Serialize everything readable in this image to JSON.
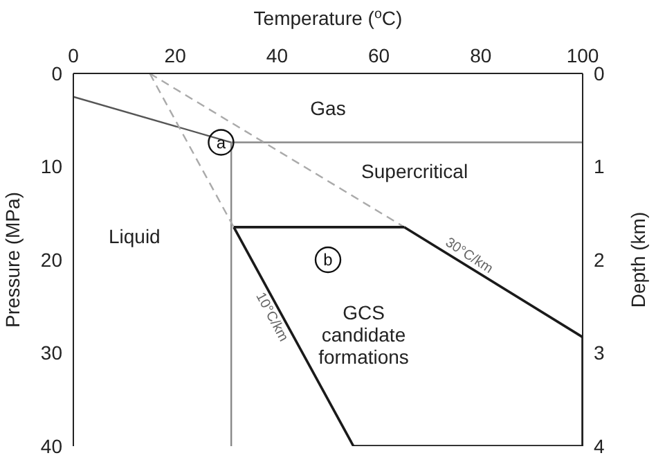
{
  "chart_data": {
    "type": "line",
    "xlabel": "Temperature ($^{o}$C)",
    "ylabel": "Pressure (MPa)",
    "y2label": "Depth (km)",
    "xlim": [
      0,
      100
    ],
    "xticks": [
      0,
      20,
      40,
      60,
      80,
      100
    ],
    "ylim": [
      40,
      0
    ],
    "yticks": [
      0,
      10,
      20,
      30,
      40
    ],
    "y2lim": [
      4,
      0
    ],
    "y2ticks": [
      0,
      1,
      2,
      3,
      4
    ],
    "grid": false,
    "legend": false,
    "marker": "none",
    "series": [
      {
        "color": "#555555",
        "x": [
          0,
          31
        ],
        "values": [
          2.5,
          7.4
        ],
        "line_style": "solid"
      },
      {
        "color": "#888888",
        "x": [
          31,
          100
        ],
        "values": [
          7.4,
          7.4
        ],
        "line_style": "solid"
      },
      {
        "color": "#888888",
        "x": [
          31,
          31
        ],
        "values": [
          7.4,
          40
        ],
        "line_style": "solid"
      },
      {
        "color": "#aaaaaa",
        "x": [
          15,
          31.5
        ],
        "values": [
          0,
          16.5
        ],
        "line_style": "dashed"
      },
      {
        "color": "#aaaaaa",
        "x": [
          15,
          65
        ],
        "values": [
          0,
          16.5
        ],
        "line_style": "dashed"
      },
      {
        "color": "#1a1a1a",
        "x": [
          31.5,
          65
        ],
        "values": [
          16.5,
          16.5
        ],
        "line_style": "solid"
      },
      {
        "color": "#1a1a1a",
        "x": [
          65,
          100
        ],
        "values": [
          16.5,
          28.3
        ],
        "line_style": "solid"
      },
      {
        "color": "#1a1a1a",
        "x": [
          100,
          100
        ],
        "values": [
          28.3,
          40
        ],
        "line_style": "solid"
      },
      {
        "color": "#1a1a1a",
        "x": [
          55,
          100
        ],
        "values": [
          40,
          40
        ],
        "line_style": "solid"
      },
      {
        "color": "#1a1a1a",
        "x": [
          31.5,
          55
        ],
        "values": [
          16.5,
          40
        ],
        "line_style": "solid"
      }
    ],
    "annotations": [
      "Gas",
      "Supercritical",
      "Liquid",
      "GCS candidate formations",
      {
        "text": "a",
        "x": 29,
        "y": 7.4
      },
      {
        "text": "b",
        "x": 50,
        "y": 20
      },
      "30°C/km",
      "10°C/km"
    ]
  }
}
